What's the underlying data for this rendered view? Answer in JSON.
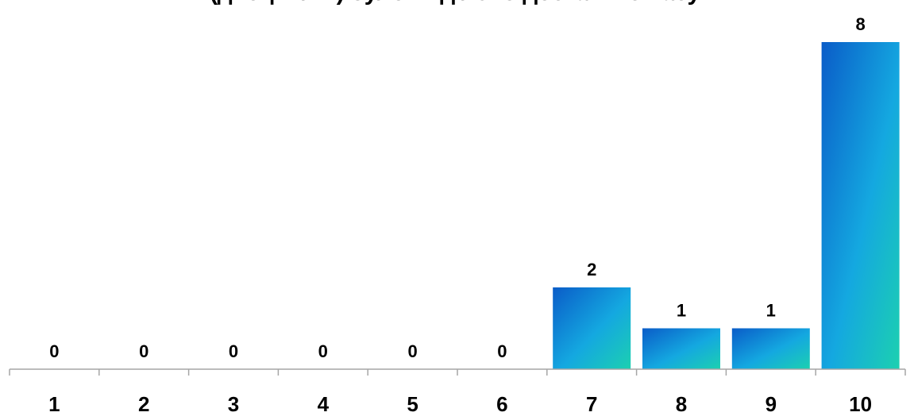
{
  "chart_data": {
    "type": "bar",
    "title": "(дисциплін) було виділено достатньо часу.",
    "xlabel": "",
    "ylabel": "",
    "categories": [
      "1",
      "2",
      "3",
      "4",
      "5",
      "6",
      "7",
      "8",
      "9",
      "10"
    ],
    "values": [
      0,
      0,
      0,
      0,
      0,
      0,
      2,
      1,
      1,
      8
    ],
    "ylim": [
      0,
      8
    ],
    "grid": false,
    "legend": "none",
    "colors": {
      "bar_top": "#0a5cc8",
      "bar_mid": "#14a8e0",
      "bar_bottom": "#1cd0b0",
      "axis": "#a6a6a6"
    }
  }
}
